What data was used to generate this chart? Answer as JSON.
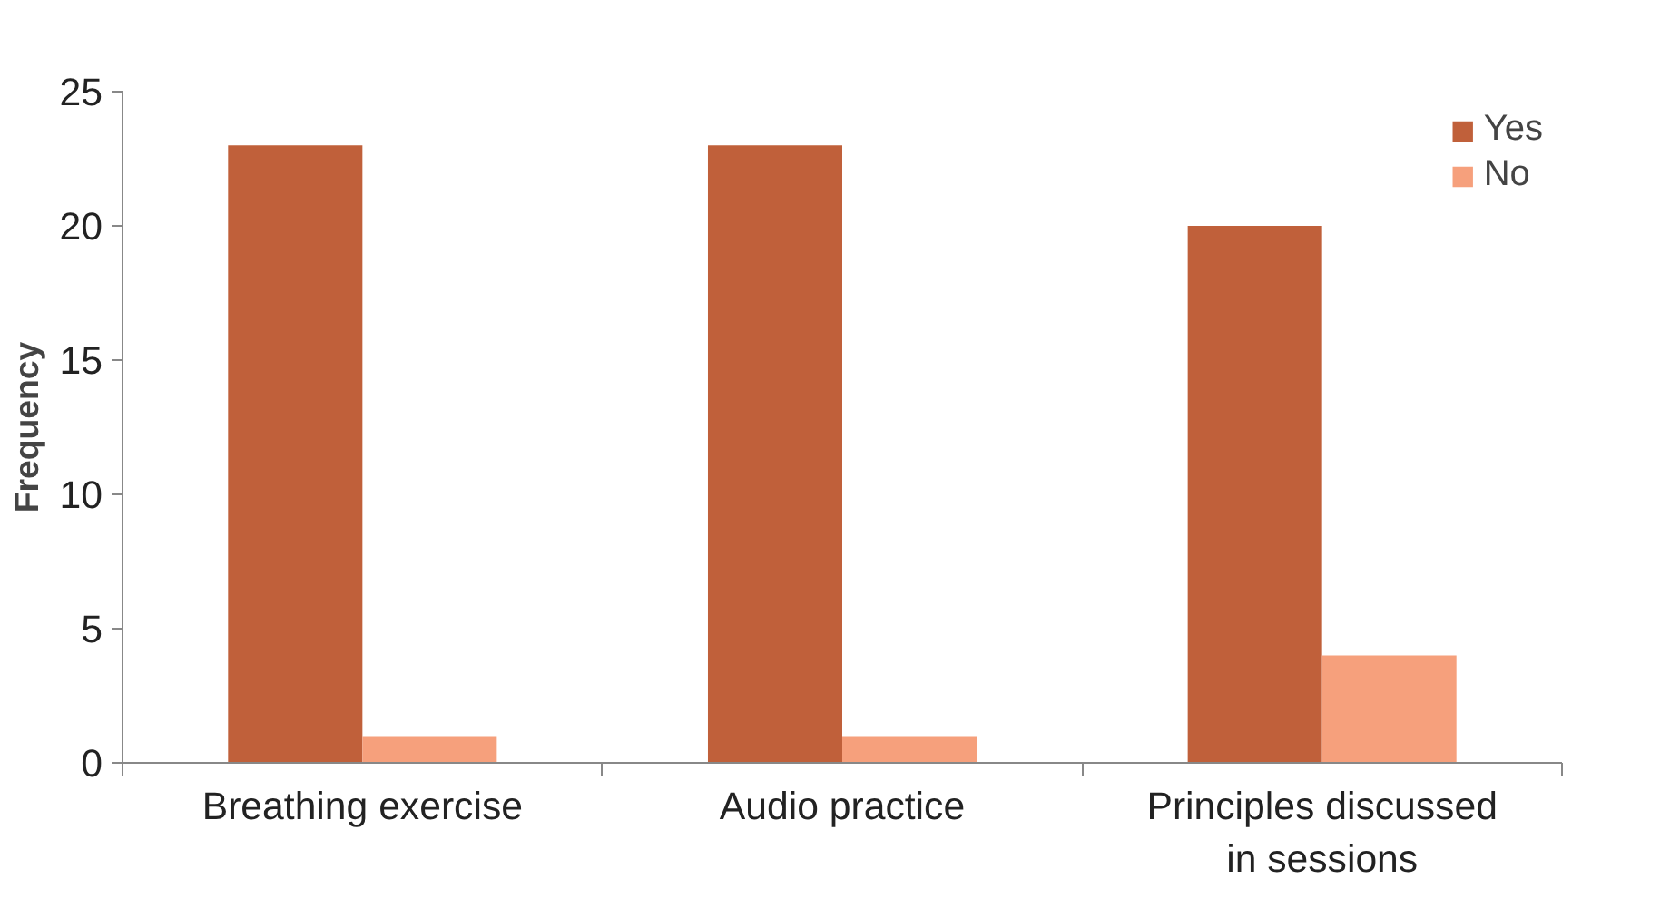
{
  "chart_data": {
    "type": "bar",
    "ylabel": "Frequency",
    "categories": [
      "Breathing exercise",
      "Audio practice",
      "Principles discussed in sessions"
    ],
    "series": [
      {
        "name": "Yes",
        "color": "#c0603a",
        "values": [
          23,
          23,
          20
        ]
      },
      {
        "name": "No",
        "color": "#f6a07c",
        "values": [
          1,
          1,
          4
        ]
      }
    ],
    "ylim": [
      0,
      25
    ],
    "yticks": [
      0,
      5,
      10,
      15,
      20,
      25
    ],
    "grid": false,
    "legend": "top right"
  }
}
